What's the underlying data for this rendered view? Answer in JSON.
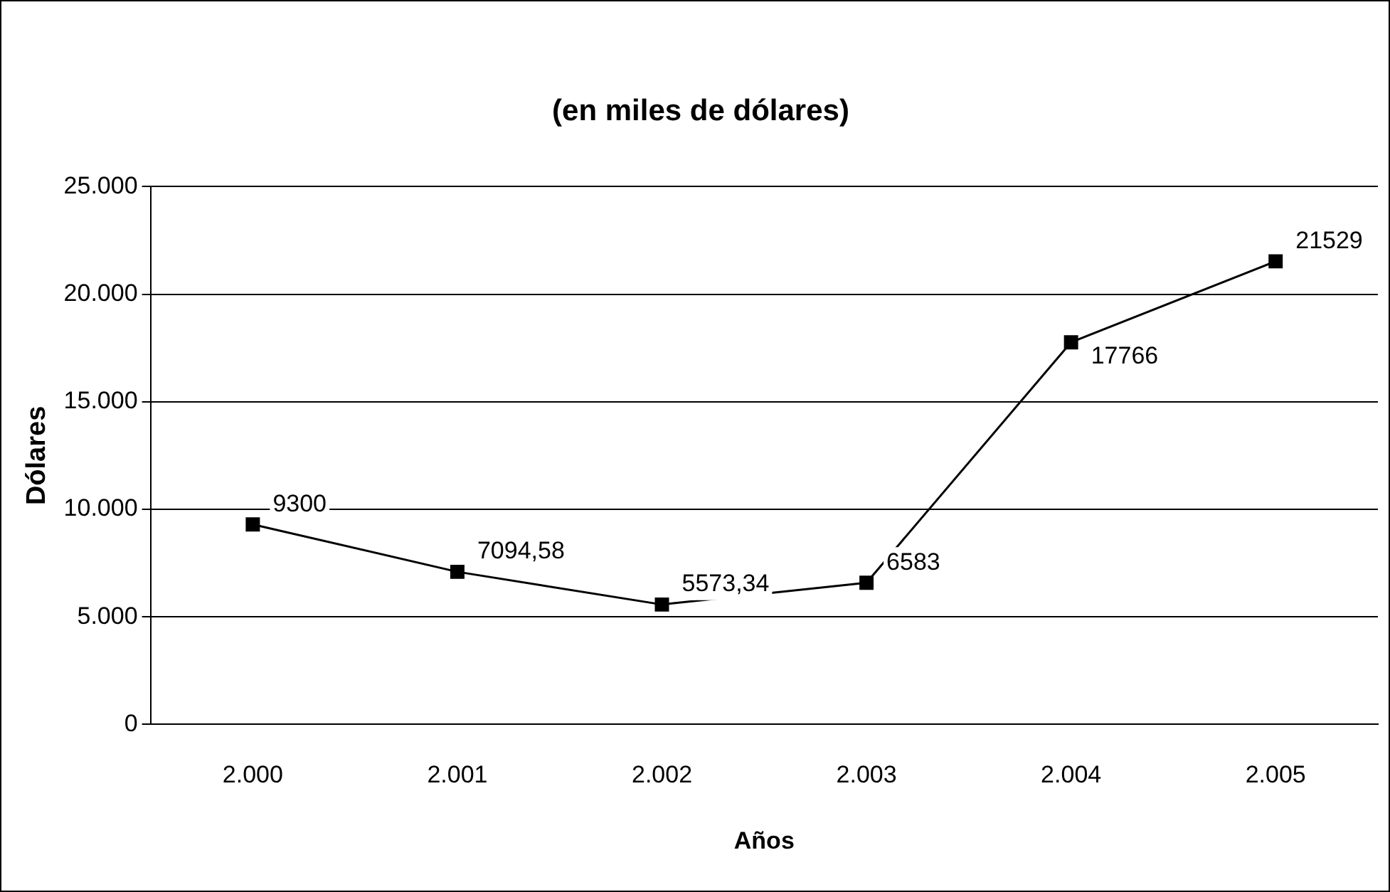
{
  "chart_data": {
    "type": "line",
    "title": "(en miles de dólares)",
    "xlabel": "Años",
    "ylabel": "Dólares",
    "categories": [
      "2.000",
      "2.001",
      "2.002",
      "2.003",
      "2.004",
      "2.005"
    ],
    "values": [
      9300,
      7094.58,
      5573.34,
      6583,
      17766,
      21529
    ],
    "value_labels": [
      "9300",
      "7094,58",
      "5573,34",
      "6583",
      "17766",
      "21529"
    ],
    "color": "#000000",
    "ylim": [
      0,
      25000
    ],
    "yticks": [
      {
        "value": 0,
        "label": "0"
      },
      {
        "value": 5000,
        "label": "5.000"
      },
      {
        "value": 10000,
        "label": "10.000"
      },
      {
        "value": 15000,
        "label": "15.000"
      },
      {
        "value": 20000,
        "label": "20.000"
      },
      {
        "value": 25000,
        "label": "25.000"
      }
    ],
    "grid": "y",
    "legend": false,
    "marker": "square",
    "line_style": "solid"
  }
}
